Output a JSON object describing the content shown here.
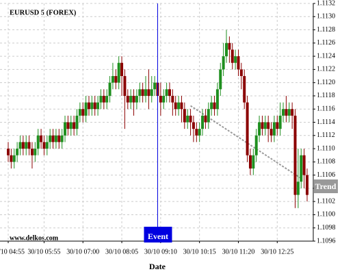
{
  "chart_data": {
    "type": "candlestick",
    "title": "EURUSD 5 (FOREX)",
    "watermark": "www.delkos.com",
    "x_label": "Date",
    "categories": [
      "30/10 04:55",
      null,
      null,
      null,
      null,
      null,
      null,
      null,
      null,
      null,
      null,
      null,
      "30/10 05:55",
      null,
      null,
      null,
      null,
      null,
      null,
      null,
      null,
      null,
      null,
      null,
      null,
      "30/10 07:00",
      null,
      null,
      null,
      null,
      null,
      null,
      null,
      null,
      null,
      null,
      null,
      null,
      "30/10 08:05",
      null,
      null,
      null,
      null,
      null,
      null,
      null,
      null,
      null,
      null,
      null,
      null,
      "30/10 09:10",
      null,
      null,
      null,
      null,
      null,
      null,
      null,
      null,
      null,
      null,
      null,
      null,
      "30/10 10:15",
      null,
      null,
      null,
      null,
      null,
      null,
      null,
      null,
      null,
      null,
      null,
      null,
      "30/10 11:20",
      null,
      null,
      null,
      null,
      null,
      null,
      null,
      null,
      null,
      null,
      null,
      null,
      "30/10 12:25",
      null,
      null,
      null,
      null,
      null,
      null,
      null,
      null,
      null,
      null
    ],
    "open": [
      1.111,
      1.1109,
      1.1108,
      1.1109,
      1.111,
      1.1111,
      1.111,
      1.1111,
      1.111,
      1.1109,
      1.111,
      1.1112,
      1.1111,
      1.111,
      1.1111,
      1.1112,
      1.1111,
      1.1112,
      1.1111,
      1.1112,
      1.1114,
      1.1113,
      1.1114,
      1.1113,
      1.1115,
      1.1116,
      1.1115,
      1.1117,
      1.1116,
      1.1117,
      1.1116,
      1.1117,
      1.1118,
      1.1117,
      1.1118,
      1.112,
      1.1121,
      1.112,
      1.1123,
      1.1121,
      1.1118,
      1.1117,
      1.1118,
      1.1117,
      1.1118,
      1.1119,
      1.1118,
      1.1119,
      1.1118,
      1.1119,
      1.112,
      1.1118,
      1.1117,
      1.1118,
      1.1119,
      1.1118,
      1.1117,
      1.1116,
      1.1117,
      1.1116,
      1.1114,
      1.1115,
      1.1114,
      1.1113,
      1.1112,
      1.1113,
      1.1115,
      1.1114,
      1.1116,
      1.1117,
      1.1116,
      1.1119,
      1.1122,
      1.1124,
      1.1126,
      1.1125,
      1.1123,
      1.1124,
      1.1122,
      1.1121,
      1.1117,
      1.1109,
      1.1107,
      1.1109,
      1.1112,
      1.1114,
      1.1113,
      1.1114,
      1.1113,
      1.1112,
      1.1114,
      1.1113,
      1.1115,
      1.1116,
      1.1115,
      1.1116,
      1.1115,
      1.1103,
      1.1105,
      1.1109,
      1.1106
    ],
    "high": [
      1.1111,
      1.111,
      1.111,
      1.1111,
      1.1112,
      1.1112,
      1.1112,
      1.1112,
      1.1111,
      1.1111,
      1.1113,
      1.1113,
      1.1112,
      1.1112,
      1.1113,
      1.1113,
      1.1113,
      1.1113,
      1.1113,
      1.1115,
      1.1115,
      1.1115,
      1.1115,
      1.1116,
      1.1117,
      1.1117,
      1.1118,
      1.1118,
      1.1118,
      1.1118,
      1.1118,
      1.1119,
      1.1119,
      1.1119,
      1.1121,
      1.1123,
      1.1122,
      1.1124,
      1.1124,
      1.1122,
      1.1119,
      1.1119,
      1.1119,
      1.1119,
      1.112,
      1.112,
      1.1121,
      1.1122,
      1.1121,
      1.1121,
      1.1121,
      1.112,
      1.1119,
      1.112,
      1.112,
      1.1119,
      1.1118,
      1.1118,
      1.1118,
      1.1117,
      1.1116,
      1.1116,
      1.1115,
      1.1114,
      1.1114,
      1.1116,
      1.1116,
      1.1117,
      1.1118,
      1.1118,
      1.112,
      1.1123,
      1.1126,
      1.1128,
      1.1127,
      1.1126,
      1.1125,
      1.1125,
      1.1123,
      1.1122,
      1.1118,
      1.111,
      1.111,
      1.1113,
      1.1115,
      1.1115,
      1.1115,
      1.1115,
      1.1114,
      1.1115,
      1.1115,
      1.1117,
      1.1117,
      1.1118,
      1.1117,
      1.1117,
      1.1116,
      1.111,
      1.111,
      1.111,
      1.1107
    ],
    "low": [
      1.1108,
      1.1107,
      1.1107,
      1.1108,
      1.1109,
      1.1109,
      1.1109,
      1.1109,
      1.1107,
      1.1108,
      1.1109,
      1.111,
      1.1109,
      1.1109,
      1.111,
      1.111,
      1.111,
      1.111,
      1.111,
      1.1111,
      1.1112,
      1.1112,
      1.1112,
      1.1112,
      1.1114,
      1.1114,
      1.1114,
      1.1115,
      1.1115,
      1.1115,
      1.1115,
      1.1116,
      1.1116,
      1.1116,
      1.1117,
      1.1119,
      1.1119,
      1.1119,
      1.1118,
      1.1113,
      1.1116,
      1.1116,
      1.1115,
      1.1116,
      1.1117,
      1.1117,
      1.1117,
      1.1116,
      1.1117,
      1.1118,
      1.1117,
      1.1115,
      1.1116,
      1.1117,
      1.1117,
      1.1115,
      1.1115,
      1.1115,
      1.1114,
      1.1113,
      1.1113,
      1.1112,
      1.1111,
      1.1111,
      1.1111,
      1.1112,
      1.1113,
      1.1113,
      1.1115,
      1.1115,
      1.1115,
      1.1118,
      1.1121,
      1.1123,
      1.1123,
      1.1122,
      1.1122,
      1.1121,
      1.1119,
      1.1116,
      1.1108,
      1.1106,
      1.1106,
      1.1108,
      1.1111,
      1.1112,
      1.1112,
      1.1111,
      1.1111,
      1.1111,
      1.1112,
      1.1112,
      1.1114,
      1.1114,
      1.1114,
      1.1113,
      1.1101,
      1.1101,
      1.1104,
      1.1104,
      1.1102
    ],
    "close": [
      1.1109,
      1.1108,
      1.1109,
      1.111,
      1.1111,
      1.111,
      1.1111,
      1.111,
      1.1109,
      1.111,
      1.1112,
      1.1111,
      1.111,
      1.1111,
      1.1112,
      1.1111,
      1.1112,
      1.1111,
      1.1112,
      1.1114,
      1.1113,
      1.1114,
      1.1113,
      1.1115,
      1.1116,
      1.1115,
      1.1117,
      1.1116,
      1.1117,
      1.1116,
      1.1117,
      1.1118,
      1.1117,
      1.1118,
      1.112,
      1.1121,
      1.112,
      1.1123,
      1.1121,
      1.1118,
      1.1117,
      1.1118,
      1.1117,
      1.1118,
      1.1119,
      1.1118,
      1.1119,
      1.1118,
      1.1119,
      1.112,
      1.1118,
      1.1117,
      1.1118,
      1.1119,
      1.1118,
      1.1117,
      1.1116,
      1.1117,
      1.1116,
      1.1114,
      1.1115,
      1.1114,
      1.1113,
      1.1112,
      1.1113,
      1.1115,
      1.1114,
      1.1116,
      1.1117,
      1.1116,
      1.1119,
      1.1122,
      1.1124,
      1.1126,
      1.1125,
      1.1123,
      1.1124,
      1.1122,
      1.1121,
      1.1117,
      1.1109,
      1.1107,
      1.1109,
      1.1112,
      1.1114,
      1.1113,
      1.1114,
      1.1113,
      1.1112,
      1.1114,
      1.1113,
      1.1115,
      1.1116,
      1.1115,
      1.1116,
      1.1115,
      1.1103,
      1.1105,
      1.1109,
      1.1106,
      1.1103
    ],
    "up_color": "#1f8f1f",
    "down_color": "#8b0000",
    "ylim": [
      1.1096,
      1.1132
    ],
    "yticks": [
      1.1096,
      1.1098,
      {
        "value": 1.11,
        "label": "1.1100"
      },
      1.1102,
      1.1104,
      1.1106,
      1.1108,
      {
        "value": 1.111,
        "label": "1.1110"
      },
      1.1112,
      1.1114,
      1.1116,
      1.1118,
      {
        "value": 1.112,
        "label": "1.1120"
      },
      1.1122,
      1.1124,
      1.1126,
      1.1128,
      {
        "value": 1.113,
        "label": "1.1130"
      },
      1.1132
    ],
    "grid": true,
    "event": {
      "label": "Event",
      "at": 50,
      "color": "#0000e0"
    },
    "trend": {
      "label": "Trend",
      "from": 61,
      "to": 98,
      "values": [
        1.11165,
        1.11055
      ],
      "color": "#999999"
    }
  }
}
